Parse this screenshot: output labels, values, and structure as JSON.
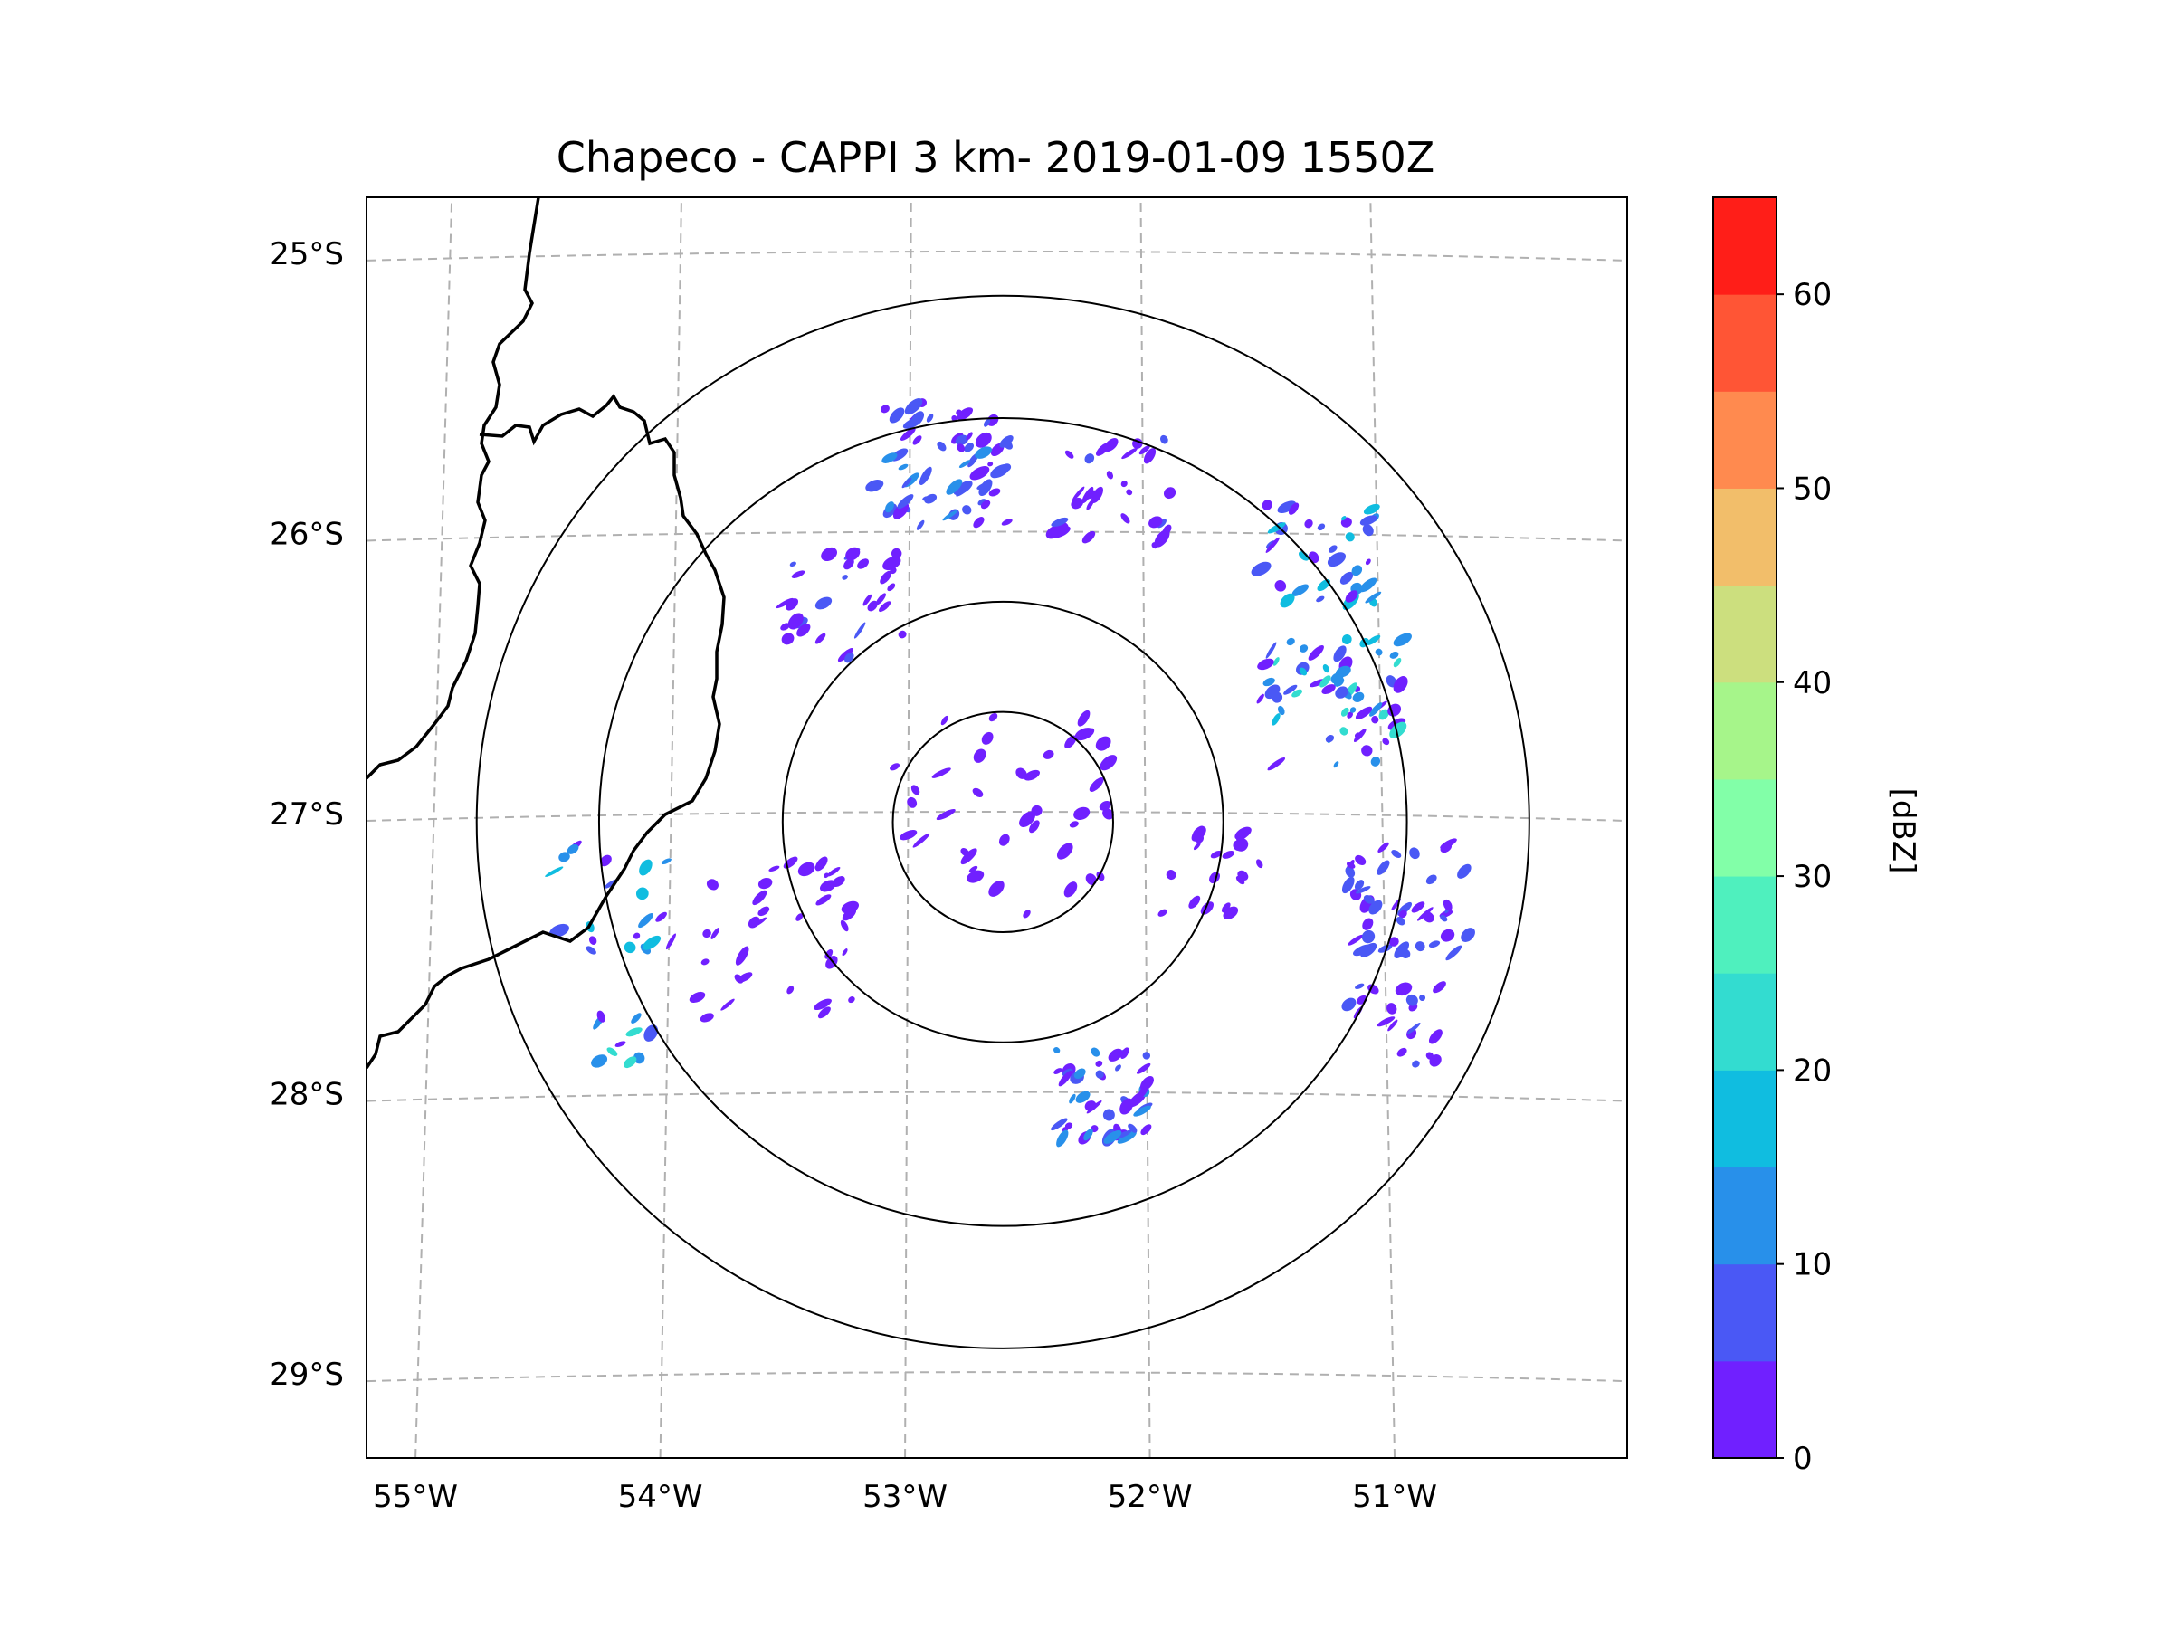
{
  "chart_data": {
    "type": "radar-map",
    "title": "Chapeco - CAPPI 3 km- 2019-01-09 1550Z",
    "xlabel": "",
    "ylabel": "",
    "lon_ticks": [
      {
        "value": -55,
        "label": "55°W"
      },
      {
        "value": -54,
        "label": "54°W"
      },
      {
        "value": -53,
        "label": "53°W"
      },
      {
        "value": -52,
        "label": "52°W"
      },
      {
        "value": -51,
        "label": "51°W"
      }
    ],
    "lat_ticks": [
      {
        "value": -25,
        "label": "25°S"
      },
      {
        "value": -26,
        "label": "26°S"
      },
      {
        "value": -27,
        "label": "27°S"
      },
      {
        "value": -28,
        "label": "28°S"
      },
      {
        "value": -29,
        "label": "29°S"
      }
    ],
    "xlim": [
      -55.2,
      -50.05
    ],
    "ylim": [
      -29.3,
      -24.8
    ],
    "gridlines": "dashed",
    "radar_center": {
      "lon": -52.6,
      "lat": -27.03
    },
    "range_rings_deg": [
      0.45,
      0.9,
      1.65,
      2.15
    ],
    "colorbar": {
      "label": "[dBZ]",
      "min": 0,
      "max": 65,
      "step": 5,
      "tick_values": [
        0,
        10,
        20,
        30,
        40,
        50,
        60
      ],
      "tick_labels": [
        "0",
        "10",
        "20",
        "30",
        "40",
        "50",
        "60"
      ],
      "colors": [
        "#7020ff",
        "#4a58f5",
        "#2890ea",
        "#10bde0",
        "#33dcd0",
        "#4ff0be",
        "#82ffa8",
        "#a6f58a",
        "#ccdf7e",
        "#f2be6a",
        "#ff8a4f",
        "#ff5535",
        "#ff1e18"
      ]
    },
    "echo_clusters": [
      {
        "lon": -52.85,
        "lat": -25.75,
        "spread": 0.28,
        "count": 60,
        "dbz": [
          0,
          12
        ]
      },
      {
        "lon": -52.15,
        "lat": -25.85,
        "spread": 0.25,
        "count": 30,
        "dbz": [
          0,
          6
        ]
      },
      {
        "lon": -51.3,
        "lat": -26.05,
        "spread": 0.25,
        "count": 35,
        "dbz": [
          0,
          18
        ]
      },
      {
        "lon": -51.25,
        "lat": -26.6,
        "spread": 0.3,
        "count": 60,
        "dbz": [
          0,
          22
        ]
      },
      {
        "lon": -50.95,
        "lat": -27.3,
        "spread": 0.25,
        "count": 45,
        "dbz": [
          0,
          10
        ]
      },
      {
        "lon": -51.75,
        "lat": -27.2,
        "spread": 0.2,
        "count": 20,
        "dbz": [
          0,
          5
        ]
      },
      {
        "lon": -52.2,
        "lat": -28.0,
        "spread": 0.2,
        "count": 45,
        "dbz": [
          0,
          14
        ]
      },
      {
        "lon": -53.25,
        "lat": -26.25,
        "spread": 0.25,
        "count": 30,
        "dbz": [
          0,
          8
        ]
      },
      {
        "lon": -53.5,
        "lat": -27.45,
        "spread": 0.35,
        "count": 35,
        "dbz": [
          0,
          4
        ]
      },
      {
        "lon": -54.2,
        "lat": -27.3,
        "spread": 0.25,
        "count": 20,
        "dbz": [
          0,
          20
        ]
      },
      {
        "lon": -54.15,
        "lat": -27.8,
        "spread": 0.12,
        "count": 10,
        "dbz": [
          0,
          24
        ]
      },
      {
        "lon": -52.6,
        "lat": -27.0,
        "spread": 0.45,
        "count": 40,
        "dbz": [
          0,
          3
        ]
      },
      {
        "lon": -51.0,
        "lat": -27.75,
        "spread": 0.2,
        "count": 20,
        "dbz": [
          0,
          8
        ]
      }
    ]
  }
}
